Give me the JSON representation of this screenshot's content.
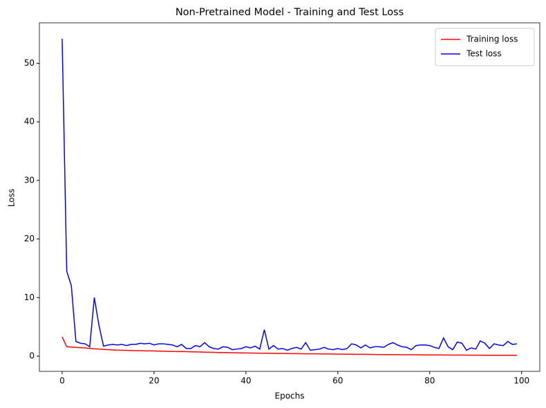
{
  "chart_data": {
    "type": "line",
    "title": "Non-Pretrained Model - Training and Test Loss",
    "x_label": "Epochs",
    "y_label": "Loss",
    "x": [
      0,
      1,
      2,
      3,
      4,
      5,
      6,
      7,
      8,
      9,
      10,
      11,
      12,
      13,
      14,
      15,
      16,
      17,
      18,
      19,
      20,
      21,
      22,
      23,
      24,
      25,
      26,
      27,
      28,
      29,
      30,
      31,
      32,
      33,
      34,
      35,
      36,
      37,
      38,
      39,
      40,
      41,
      42,
      43,
      44,
      45,
      46,
      47,
      48,
      49,
      50,
      51,
      52,
      53,
      54,
      55,
      56,
      57,
      58,
      59,
      60,
      61,
      62,
      63,
      64,
      65,
      66,
      67,
      68,
      69,
      70,
      71,
      72,
      73,
      74,
      75,
      76,
      77,
      78,
      79,
      80,
      81,
      82,
      83,
      84,
      85,
      86,
      87,
      88,
      89,
      90,
      91,
      92,
      93,
      94,
      95,
      96,
      97,
      98,
      99
    ],
    "series": [
      {
        "name": "Training loss",
        "color": "#ff0000",
        "values": [
          3.3,
          1.6,
          1.55,
          1.5,
          1.45,
          1.4,
          1.32,
          1.25,
          1.2,
          1.15,
          1.1,
          1.05,
          1.02,
          1.0,
          0.98,
          0.95,
          0.93,
          0.92,
          0.9,
          0.9,
          0.88,
          0.86,
          0.84,
          0.82,
          0.8,
          0.78,
          0.8,
          0.76,
          0.74,
          0.72,
          0.7,
          0.68,
          0.66,
          0.64,
          0.62,
          0.6,
          0.6,
          0.58,
          0.56,
          0.55,
          0.54,
          0.53,
          0.52,
          0.5,
          0.5,
          0.48,
          0.47,
          0.46,
          0.45,
          0.44,
          0.43,
          0.42,
          0.41,
          0.4,
          0.4,
          0.39,
          0.38,
          0.37,
          0.36,
          0.35,
          0.34,
          0.34,
          0.33,
          0.32,
          0.31,
          0.3,
          0.3,
          0.29,
          0.28,
          0.27,
          0.27,
          0.26,
          0.25,
          0.25,
          0.24,
          0.23,
          0.23,
          0.22,
          0.22,
          0.21,
          0.21,
          0.2,
          0.2,
          0.19,
          0.19,
          0.18,
          0.18,
          0.17,
          0.17,
          0.16,
          0.16,
          0.16,
          0.15,
          0.15,
          0.15,
          0.14,
          0.14,
          0.14,
          0.13,
          0.13
        ]
      },
      {
        "name": "Test loss",
        "color": "#0000ff",
        "values": [
          54.2,
          14.5,
          12.0,
          2.5,
          2.2,
          2.1,
          1.6,
          10.0,
          5.3,
          1.7,
          1.9,
          2.0,
          1.9,
          2.0,
          1.8,
          2.0,
          2.0,
          2.2,
          2.1,
          2.2,
          1.9,
          2.1,
          2.1,
          2.0,
          1.9,
          1.6,
          2.0,
          1.3,
          1.3,
          1.8,
          1.6,
          2.3,
          1.6,
          1.3,
          1.2,
          1.6,
          1.5,
          1.1,
          1.2,
          1.3,
          1.6,
          1.4,
          1.7,
          1.2,
          4.5,
          1.2,
          1.8,
          1.2,
          1.3,
          1.0,
          1.3,
          1.5,
          1.2,
          2.3,
          1.0,
          1.1,
          1.2,
          1.5,
          1.2,
          1.1,
          1.3,
          1.1,
          1.3,
          2.1,
          1.9,
          1.4,
          1.9,
          1.4,
          1.6,
          1.6,
          1.5,
          2.0,
          2.3,
          1.9,
          1.6,
          1.5,
          1.1,
          1.8,
          1.9,
          1.9,
          1.8,
          1.5,
          1.3,
          3.1,
          1.6,
          1.1,
          2.4,
          2.2,
          1.0,
          1.4,
          1.2,
          2.6,
          2.2,
          1.3,
          2.1,
          1.9,
          1.8,
          2.5,
          2.0,
          2.1
        ]
      }
    ],
    "xlim": [
      -4.95,
      103.95
    ],
    "ylim": [
      -2.6,
      56.9
    ],
    "xticks": [
      0,
      20,
      40,
      60,
      80,
      100
    ],
    "yticks": [
      0,
      10,
      20,
      30,
      40,
      50
    ],
    "legend": "upper right"
  }
}
